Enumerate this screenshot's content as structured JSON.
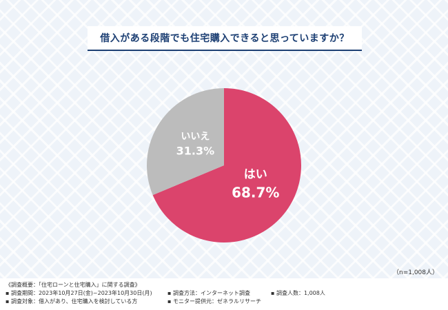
{
  "title": "借入がある段階でも住宅購入できると思っていますか？",
  "sample_size": "（n=1,008人）",
  "colors": {
    "yes": "#db446c",
    "no": "#bcbcbc",
    "title": "#1c3f73"
  },
  "chart_data": {
    "type": "pie",
    "title": "借入がある段階でも住宅購入できると思っていますか？",
    "slices": [
      {
        "label": "はい",
        "value": 68.7,
        "display": "68.7%"
      },
      {
        "label": "いいえ",
        "value": 31.3,
        "display": "31.3%"
      }
    ]
  },
  "footer": {
    "overview": "《調査概要：「住宅ローンと住宅購入」に関する調査》",
    "period": "▪ 調査期間：2023年10月27日(金)~2023年10月30日(月)",
    "method": "▪ 調査方法：インターネット調査",
    "count": "▪ 調査人数：1,008人",
    "target": "▪ 調査対象：借入があり、住宅購入を検討している方",
    "provider": "▪ モニター提供元：ゼネラルリサーチ"
  }
}
